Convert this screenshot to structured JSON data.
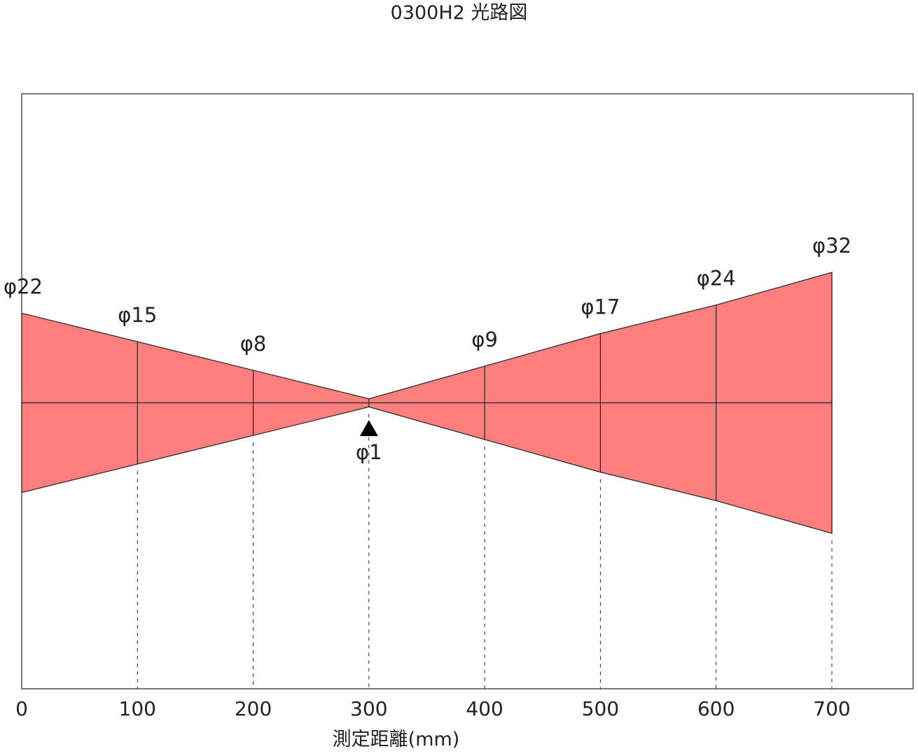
{
  "title": "0300H2 光路図",
  "xlabel": "測定距離(mm)",
  "colors": {
    "beam": "#ff7f7f",
    "line": "#222222",
    "frame": "#222222"
  },
  "chart_data": {
    "type": "diagram",
    "xlim": [
      0,
      700
    ],
    "x_ticks": [
      "0",
      "100",
      "200",
      "300",
      "400",
      "500",
      "600",
      "700"
    ],
    "focus_marker": "triangle-up",
    "beam_profile": [
      {
        "distance": 0,
        "diameter": 22,
        "label": "φ22"
      },
      {
        "distance": 100,
        "diameter": 15,
        "label": "φ15"
      },
      {
        "distance": 200,
        "diameter": 8,
        "label": "φ8"
      },
      {
        "distance": 300,
        "diameter": 1,
        "label": "φ1"
      },
      {
        "distance": 400,
        "diameter": 9,
        "label": "φ9"
      },
      {
        "distance": 500,
        "diameter": 17,
        "label": "φ17"
      },
      {
        "distance": 600,
        "diameter": 24,
        "label": "φ24"
      },
      {
        "distance": 700,
        "diameter": 32,
        "label": "φ32"
      }
    ]
  }
}
